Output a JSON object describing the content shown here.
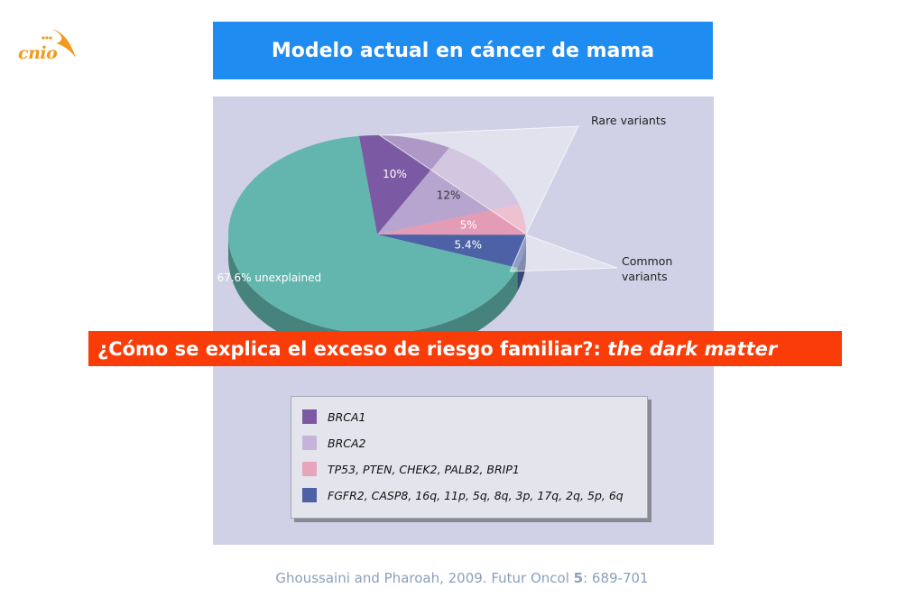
{
  "logo": {
    "text": "cnio"
  },
  "header": {
    "title": "Modelo actual en cáncer de mama"
  },
  "chart_data": {
    "type": "pie",
    "slices": [
      {
        "label": "10%",
        "value": 10,
        "color": "#7b5aa3"
      },
      {
        "label": "12%",
        "value": 12,
        "color": "#b7a4cf"
      },
      {
        "label": "5%",
        "value": 5,
        "color": "#e49bb5"
      },
      {
        "label": "5.4%",
        "value": 5.4,
        "color": "#4d62a6"
      },
      {
        "label": "67.6% unexplained",
        "value": 67.6,
        "color": "#63b6ae"
      }
    ],
    "callouts": {
      "rare": "Rare variants",
      "common_line1": "Common",
      "common_line2": "variants"
    },
    "legend": [
      {
        "label": "BRCA1",
        "color": "#7b5aa3"
      },
      {
        "label": "BRCA2",
        "color": "#c4b4da"
      },
      {
        "label": "TP53, PTEN, CHEK2, PALB2, BRIP1",
        "color": "#e8a4bb"
      },
      {
        "label": "FGFR2, CASP8, 16q, 11p, 5q, 8q, 3p, 17q, 2q, 5p, 6q",
        "color": "#4d62a6"
      }
    ]
  },
  "banner": {
    "question": "¿Cómo se explica el exceso de riesgo familiar?: ",
    "emphasis": "the dark matter"
  },
  "citation": {
    "authors": "Ghoussaini and Pharoah, 2009. Futur Oncol ",
    "volume": "5",
    "pages": ": 689-701"
  }
}
